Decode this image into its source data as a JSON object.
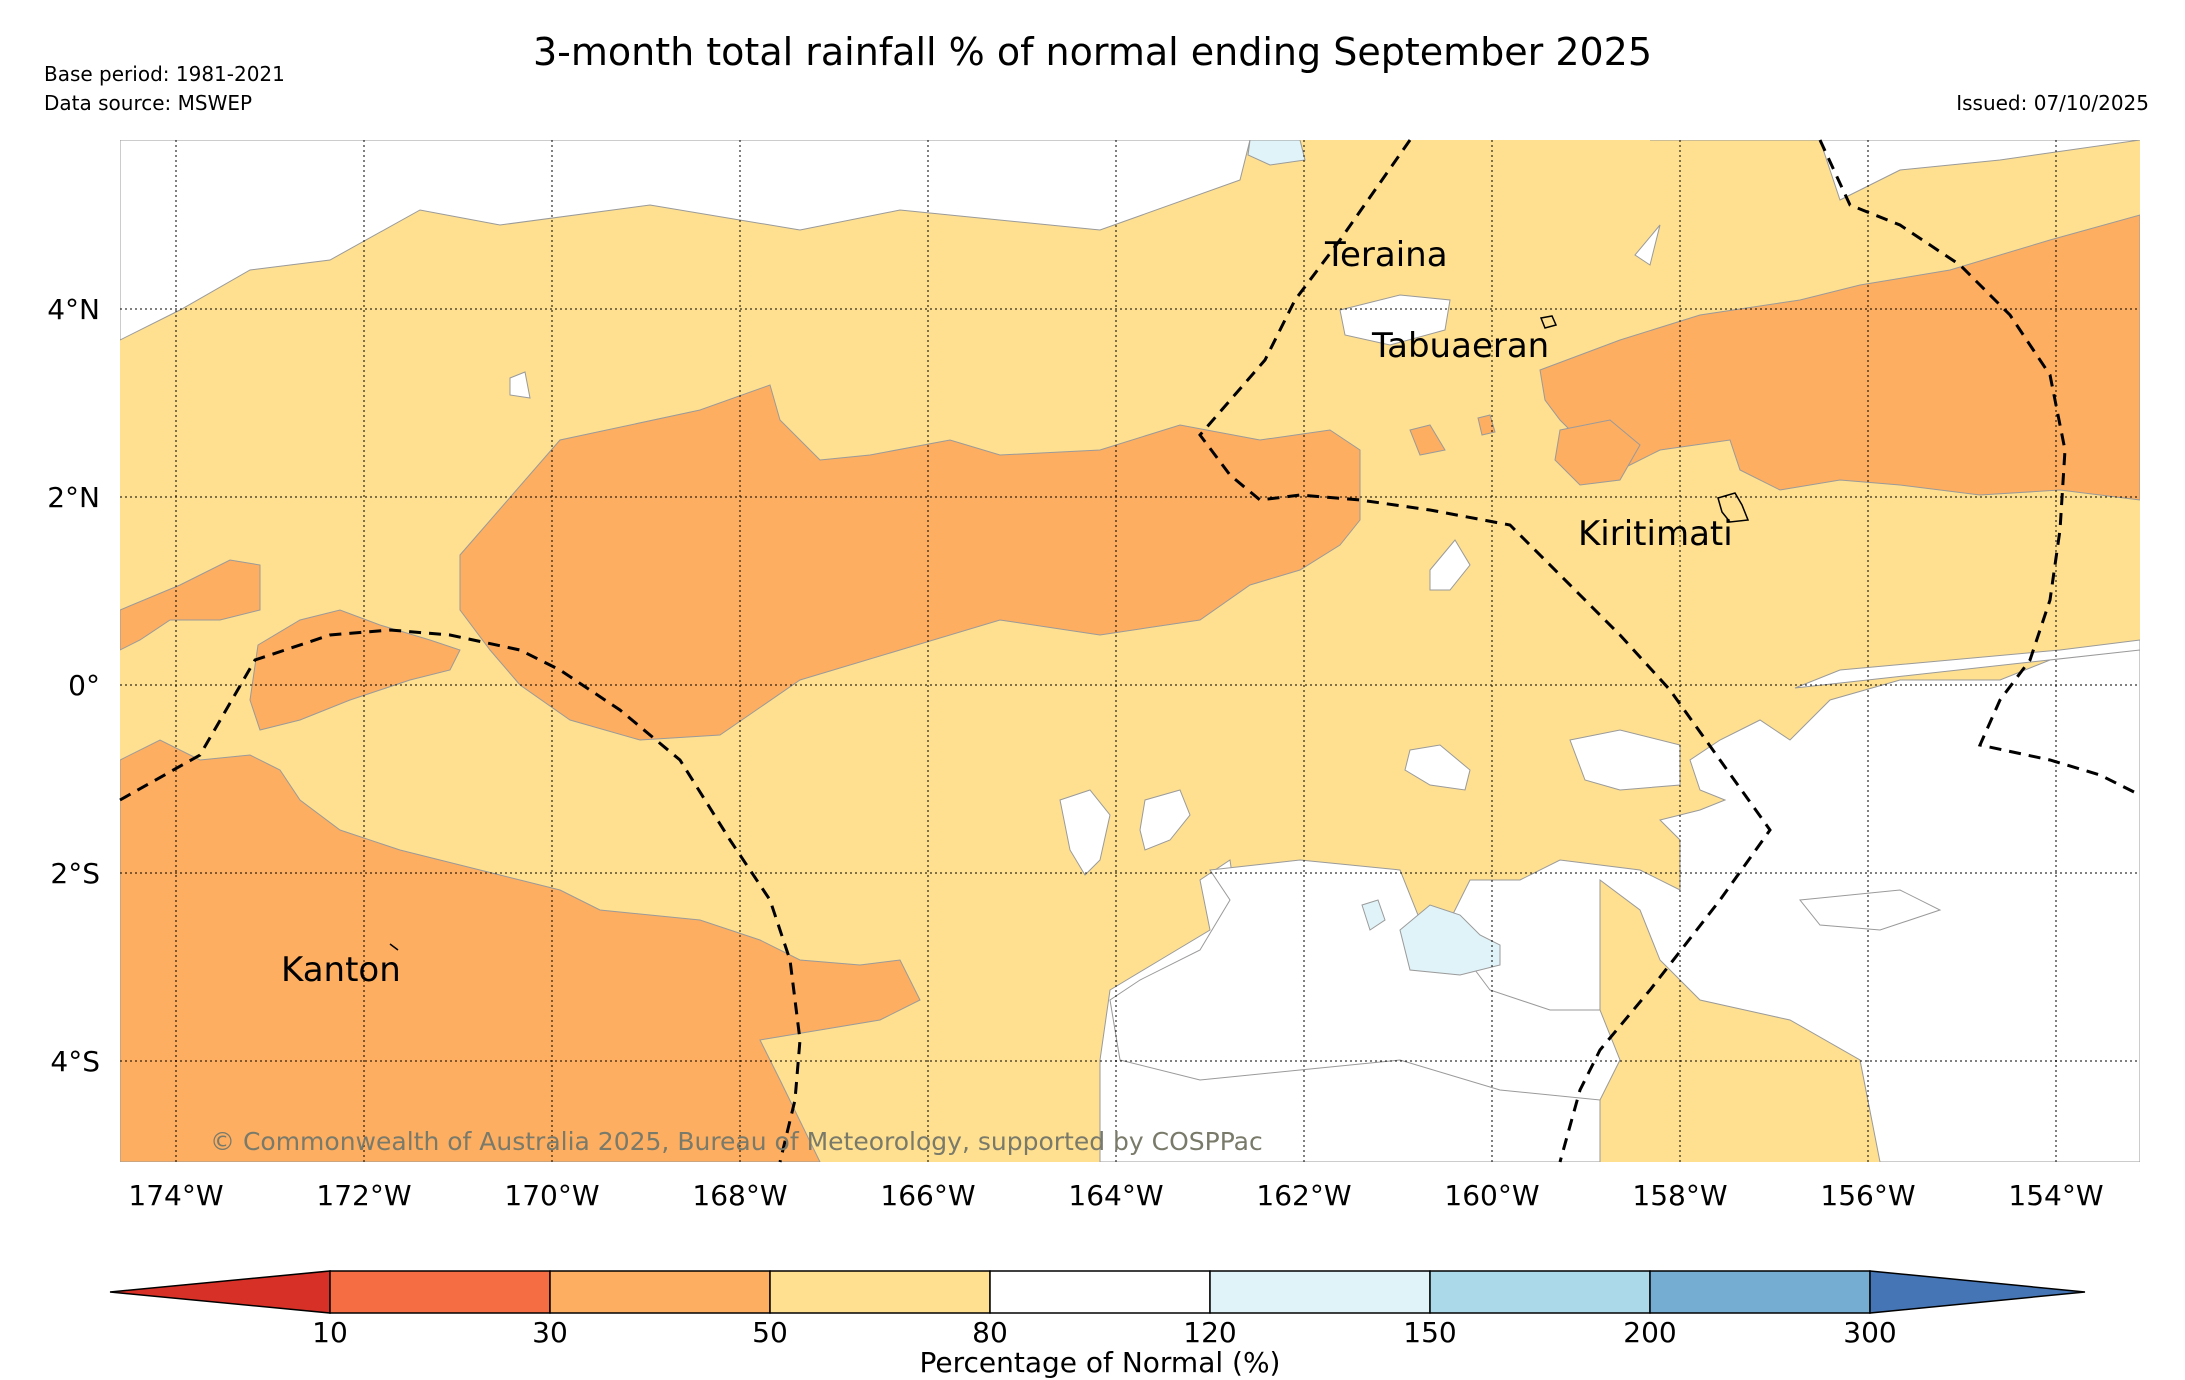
{
  "title": "3-month total rainfall % of normal ending September 2025",
  "base_period": "Base period: 1981-2021",
  "data_source": "Data source: MSWEP",
  "issued": "Issued: 07/10/2025",
  "copyright": "© Commonwealth of Australia 2025, Bureau of Meteorology, supported by COSPPac",
  "map": {
    "lon_labels": [
      "174°W",
      "172°W",
      "170°W",
      "168°W",
      "166°W",
      "164°W",
      "162°W",
      "160°W",
      "158°W",
      "156°W",
      "154°W"
    ],
    "lat_labels": [
      "4°N",
      "2°N",
      "0°",
      "2°S",
      "4°S"
    ],
    "places": [
      "Teraina",
      "Tabuaeran",
      "Kiritimati",
      "Kanton"
    ]
  },
  "colorbar": {
    "title": "Percentage of Normal (%)",
    "ticks": [
      "10",
      "30",
      "50",
      "80",
      "120",
      "150",
      "200",
      "300"
    ],
    "colors": {
      "lt10": "#d73027",
      "10-30": "#f46d43",
      "30-50": "#fdae61",
      "50-80": "#fee090",
      "80-120": "#ffffff",
      "120-150": "#e0f3f8",
      "150-200": "#abd9e9",
      "200-300": "#74add1",
      "gt300": "#4575b4"
    }
  }
}
